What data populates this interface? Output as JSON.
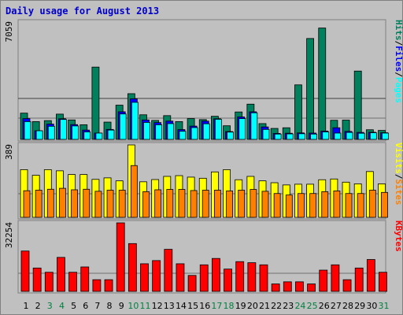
{
  "title": "Daily usage for August 2013",
  "colors": {
    "hits": "#00805c",
    "files": "#0000ff",
    "pages": "#00ffff",
    "visits": "#ffff00",
    "sites": "#ff8000",
    "kbytes": "#ff0000",
    "weekday_label": "#000000",
    "weekend_label": "#008040",
    "title": "#0000cc"
  },
  "chart_data": [
    {
      "type": "bar",
      "panel": "hits-files-pages",
      "categories": [
        "1",
        "2",
        "3",
        "4",
        "5",
        "6",
        "7",
        "8",
        "9",
        "10",
        "11",
        "12",
        "13",
        "14",
        "15",
        "16",
        "17",
        "18",
        "19",
        "20",
        "21",
        "22",
        "23",
        "24",
        "25",
        "26",
        "27",
        "28",
        "29",
        "30",
        "31"
      ],
      "weekend": [
        "3",
        "4",
        "10",
        "11",
        "17",
        "18",
        "24",
        "25",
        "31"
      ],
      "ymax_label": "7059",
      "ylim": [
        0,
        7059
      ],
      "legend": [
        {
          "text": "Pages",
          "color": "#00ffff"
        },
        {
          "text": "/",
          "color": "#000000"
        },
        {
          "text": "Files",
          "color": "#0000ff"
        },
        {
          "text": "/",
          "color": "#000000"
        },
        {
          "text": "Hits",
          "color": "#00805c"
        }
      ],
      "series": [
        {
          "name": "Hits",
          "values": [
            1580,
            1070,
            1130,
            1520,
            1170,
            880,
            4350,
            1040,
            2060,
            2750,
            1480,
            1140,
            1430,
            1070,
            1250,
            1190,
            1390,
            820,
            1650,
            2120,
            950,
            660,
            700,
            3280,
            6070,
            6700,
            1150,
            1160,
            4110,
            580,
            540
          ]
        },
        {
          "name": "Files",
          "values": [
            1250,
            520,
            920,
            1240,
            890,
            560,
            380,
            600,
            1660,
            2440,
            1170,
            1010,
            1100,
            590,
            800,
            1100,
            1240,
            470,
            1350,
            1660,
            750,
            360,
            370,
            390,
            380,
            500,
            700,
            480,
            420,
            430,
            400
          ]
        },
        {
          "name": "Pages",
          "values": [
            1070,
            520,
            790,
            1200,
            810,
            450,
            380,
            560,
            1530,
            2230,
            1020,
            880,
            950,
            490,
            710,
            940,
            1210,
            440,
            1250,
            1600,
            600,
            320,
            330,
            340,
            320,
            450,
            380,
            420,
            370,
            400,
            380
          ]
        }
      ]
    },
    {
      "type": "bar",
      "panel": "visits-sites",
      "categories": [
        "1",
        "2",
        "3",
        "4",
        "5",
        "6",
        "7",
        "8",
        "9",
        "10",
        "11",
        "12",
        "13",
        "14",
        "15",
        "16",
        "17",
        "18",
        "19",
        "20",
        "21",
        "22",
        "23",
        "24",
        "25",
        "26",
        "27",
        "28",
        "29",
        "30",
        "31"
      ],
      "ymax_label": "389",
      "ylim": [
        0,
        389
      ],
      "legend": [
        {
          "text": "Sites",
          "color": "#ff8000"
        },
        {
          "text": "/",
          "color": "#000000"
        },
        {
          "text": "Visits",
          "color": "#ffff00"
        }
      ],
      "series": [
        {
          "name": "Visits",
          "values": [
            256,
            226,
            256,
            250,
            230,
            230,
            204,
            212,
            196,
            389,
            191,
            203,
            220,
            224,
            216,
            210,
            244,
            256,
            202,
            220,
            196,
            186,
            174,
            178,
            178,
            202,
            206,
            189,
            180,
            246,
            180
          ]
        },
        {
          "name": "Sites",
          "values": [
            143,
            146,
            151,
            156,
            148,
            151,
            140,
            146,
            146,
            278,
            138,
            148,
            150,
            150,
            144,
            146,
            146,
            142,
            146,
            150,
            140,
            128,
            120,
            128,
            128,
            138,
            142,
            128,
            128,
            146,
            134
          ]
        }
      ]
    },
    {
      "type": "bar",
      "panel": "kbytes",
      "categories": [
        "1",
        "2",
        "3",
        "4",
        "5",
        "6",
        "7",
        "8",
        "9",
        "10",
        "11",
        "12",
        "13",
        "14",
        "15",
        "16",
        "17",
        "18",
        "19",
        "20",
        "21",
        "22",
        "23",
        "24",
        "25",
        "26",
        "27",
        "28",
        "29",
        "30",
        "31"
      ],
      "ymax_label": "32254",
      "ylim": [
        0,
        32254
      ],
      "legend": [
        {
          "text": "KBytes",
          "color": "#ff0000"
        }
      ],
      "series": [
        {
          "name": "KBytes",
          "values": [
            19000,
            11000,
            9000,
            16000,
            9000,
            11500,
            5500,
            5500,
            32254,
            22500,
            13000,
            14500,
            19800,
            13000,
            7500,
            12500,
            15500,
            10500,
            14000,
            13500,
            12500,
            3500,
            4500,
            4500,
            3500,
            10000,
            12500,
            5500,
            11000,
            15000,
            9000
          ]
        }
      ]
    }
  ]
}
